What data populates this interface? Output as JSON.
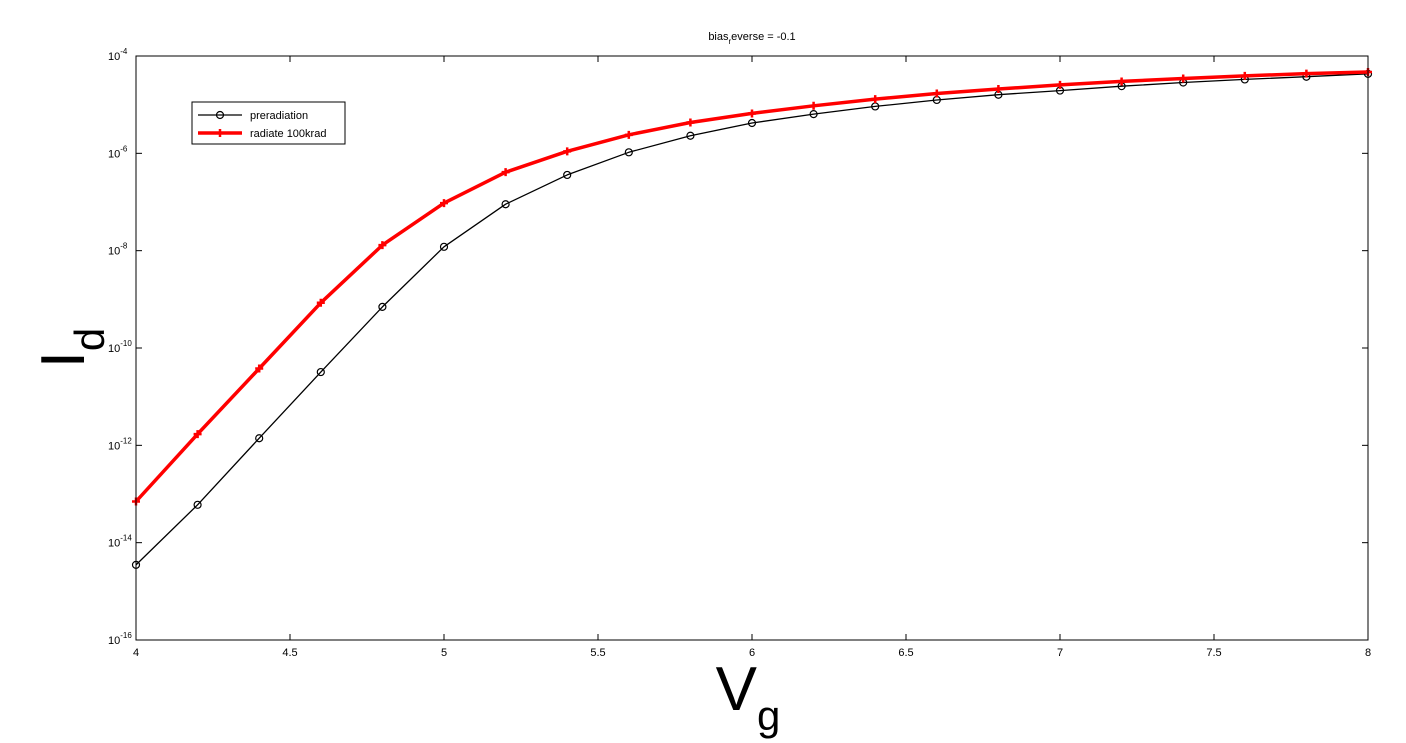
{
  "chart_data": {
    "type": "line",
    "title_main": "bias",
    "title_sub": "r",
    "title_rest": "everse = -0.1",
    "xlabel_main": "V",
    "xlabel_sub": "g",
    "ylabel_main": "I",
    "ylabel_sub": "d",
    "xlim": [
      4,
      8
    ],
    "ylim": [
      1e-16,
      0.0001
    ],
    "yscale": "log",
    "grid": false,
    "legend_position": "top-left",
    "x_tick_labels": [
      "4",
      "4.5",
      "5",
      "5.5",
      "6",
      "6.5",
      "7",
      "7.5",
      "8"
    ],
    "y_tick_exponents": [
      "-16",
      "-14",
      "-12",
      "-10",
      "-8",
      "-6",
      "-4"
    ],
    "y_tick_base": "10",
    "x": [
      4.0,
      4.2,
      4.4,
      4.6,
      4.8,
      5.0,
      5.2,
      5.4,
      5.6,
      5.8,
      6.0,
      6.2,
      6.4,
      6.6,
      6.8,
      7.0,
      7.2,
      7.4,
      7.6,
      7.8,
      8.0
    ],
    "series": [
      {
        "name": "preradiation",
        "color": "#000000",
        "marker": "circle",
        "values": [
          3.5e-15,
          6e-14,
          1.4e-12,
          3.2e-11,
          7e-10,
          1.2e-08,
          9e-08,
          3.6e-07,
          1.05e-06,
          2.3e-06,
          4.2e-06,
          6.4e-06,
          9.2e-06,
          1.25e-05,
          1.6e-05,
          1.95e-05,
          2.4e-05,
          2.85e-05,
          3.3e-05,
          3.75e-05,
          4.3e-05
        ]
      },
      {
        "name": "radiate 100krad",
        "color": "#ff0000",
        "marker": "plus",
        "values": [
          7e-14,
          1.7e-12,
          3.8e-11,
          8.5e-10,
          1.3e-08,
          9.5e-08,
          4.1e-07,
          1.1e-06,
          2.4e-06,
          4.3e-06,
          6.6e-06,
          9.5e-06,
          1.3e-05,
          1.7e-05,
          2.1e-05,
          2.55e-05,
          3e-05,
          3.45e-05,
          3.9e-05,
          4.35e-05,
          4.7e-05
        ]
      }
    ]
  }
}
